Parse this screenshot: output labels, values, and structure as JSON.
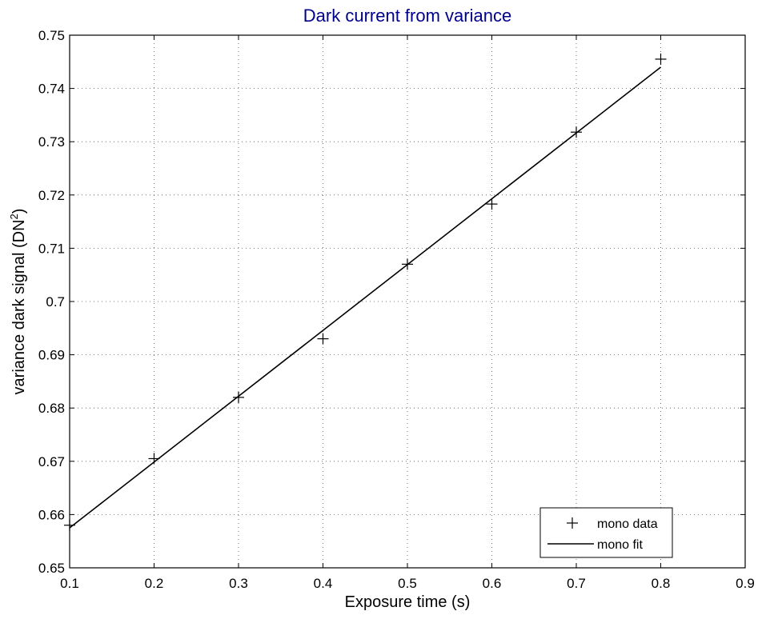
{
  "chart_data": {
    "type": "line",
    "title": "Dark current from variance",
    "xlabel": "Exposure time (s)",
    "ylabel": "variance dark signal (DN",
    "ylabel_superscript": "2",
    "ylabel_suffix": ")",
    "xlim": [
      0.1,
      0.9
    ],
    "ylim": [
      0.65,
      0.75
    ],
    "xticks": [
      0.1,
      0.2,
      0.3,
      0.4,
      0.5,
      0.6,
      0.7,
      0.8,
      0.9
    ],
    "xtick_labels": [
      "0.1",
      "0.2",
      "0.3",
      "0.4",
      "0.5",
      "0.6",
      "0.7",
      "0.8",
      "0.9"
    ],
    "yticks": [
      0.65,
      0.66,
      0.67,
      0.68,
      0.69,
      0.7,
      0.71,
      0.72,
      0.73,
      0.74,
      0.75
    ],
    "ytick_labels": [
      "0.65",
      "0.66",
      "0.67",
      "0.68",
      "0.69",
      "0.7",
      "0.71",
      "0.72",
      "0.73",
      "0.74",
      "0.75"
    ],
    "grid": true,
    "legend_position": "bottom-right",
    "series": [
      {
        "name": "mono data",
        "kind": "markers",
        "marker": "plus",
        "x": [
          0.1,
          0.2,
          0.3,
          0.4,
          0.5,
          0.6,
          0.7,
          0.8
        ],
        "y": [
          0.658,
          0.6705,
          0.682,
          0.693,
          0.707,
          0.7183,
          0.7318,
          0.7455
        ]
      },
      {
        "name": "mono fit",
        "kind": "line",
        "x": [
          0.1,
          0.8
        ],
        "y": [
          0.6575,
          0.744
        ]
      }
    ],
    "colors": {
      "title": "#00008B",
      "data": "#000000",
      "fit": "#000000",
      "grid": "#555555"
    }
  }
}
